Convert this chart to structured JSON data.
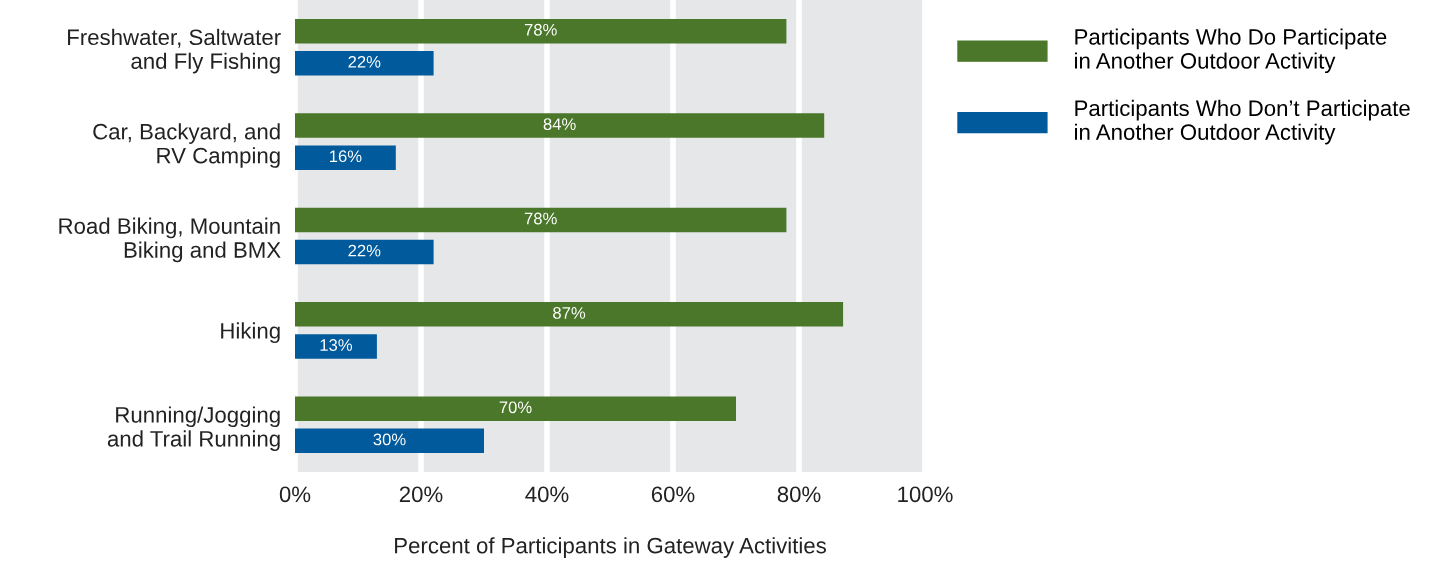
{
  "chart_data": {
    "type": "bar",
    "orientation": "horizontal",
    "xlabel": "Percent of Participants in Gateway Activities",
    "categories": [
      "Freshwater, Saltwater\nand Fly Fishing",
      "Car, Backyard, and\nRV Camping",
      "Road Biking, Mountain\nBiking and BMX",
      "Hiking",
      "Running/Jogging\nand Trail Running"
    ],
    "series": [
      {
        "name": "Participants Who Do Participate\nin Another Outdoor Activity",
        "color": "#4a7729",
        "values": [
          78,
          84,
          78,
          87,
          70
        ],
        "value_labels": [
          "78%",
          "84%",
          "78%",
          "87%",
          "70%"
        ]
      },
      {
        "name": "Participants Who Don’t Participate\nin Another Outdoor Activity",
        "color": "#005a9c",
        "values": [
          22,
          16,
          22,
          13,
          30
        ],
        "value_labels": [
          "22%",
          "16%",
          "22%",
          "13%",
          "30%"
        ]
      }
    ],
    "xlim": [
      0,
      100
    ],
    "xticks": [
      {
        "value": 0,
        "label": "0%"
      },
      {
        "value": 20,
        "label": "20%"
      },
      {
        "value": 40,
        "label": "40%"
      },
      {
        "value": 60,
        "label": "60%"
      },
      {
        "value": 80,
        "label": "80%"
      },
      {
        "value": 100,
        "label": "100%"
      }
    ],
    "grid": "x",
    "legend": "top right"
  }
}
